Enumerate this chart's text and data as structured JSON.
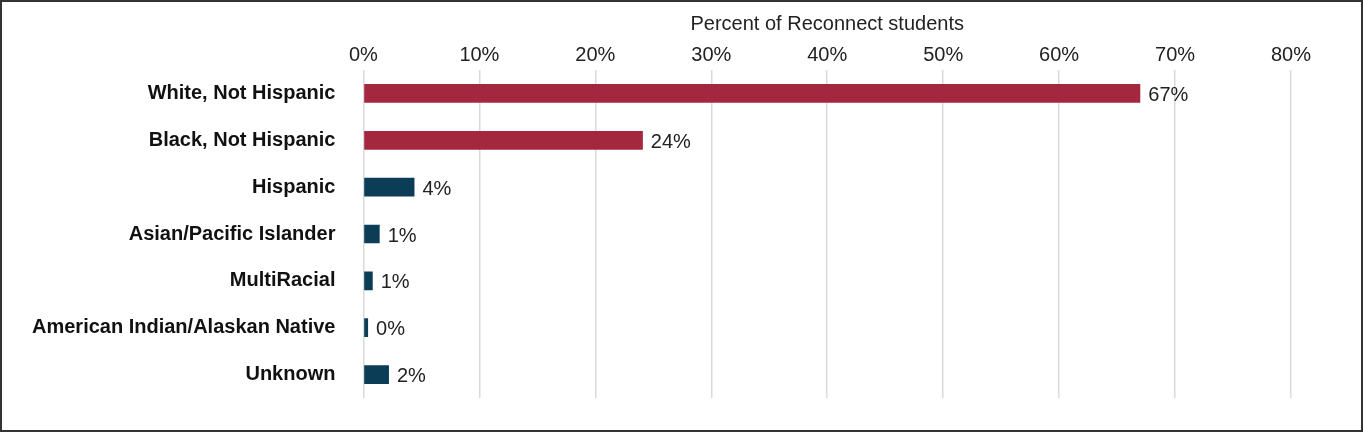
{
  "chart_data": {
    "type": "bar",
    "orientation": "horizontal",
    "xlabel": "Percent of Reconnect students",
    "categories": [
      "White, Not Hispanic",
      "Black, Not Hispanic",
      "Hispanic",
      "Asian/Pacific Islander",
      "MultiRacial",
      "American Indian/Alaskan Native",
      "Unknown"
    ],
    "values": [
      67.0,
      24.1,
      4.4,
      1.4,
      0.8,
      0.4,
      2.2
    ],
    "value_labels": [
      "67%",
      "24%",
      "4%",
      "1%",
      "1%",
      "0%",
      "2%"
    ],
    "colors": [
      "#a3283f",
      "#a3283f",
      "#0b3d57",
      "#0b3d57",
      "#0b3d57",
      "#0b3d57",
      "#0b3d57"
    ],
    "xlim": [
      0,
      80
    ],
    "xticks": [
      {
        "value": 0,
        "label": "0%"
      },
      {
        "value": 10,
        "label": "10%"
      },
      {
        "value": 20,
        "label": "20%"
      },
      {
        "value": 30,
        "label": "30%"
      },
      {
        "value": 40,
        "label": "40%"
      },
      {
        "value": 50,
        "label": "50%"
      },
      {
        "value": 60,
        "label": "60%"
      },
      {
        "value": 70,
        "label": "70%"
      },
      {
        "value": 80,
        "label": "80%"
      }
    ],
    "grid": "x",
    "legend": false
  }
}
